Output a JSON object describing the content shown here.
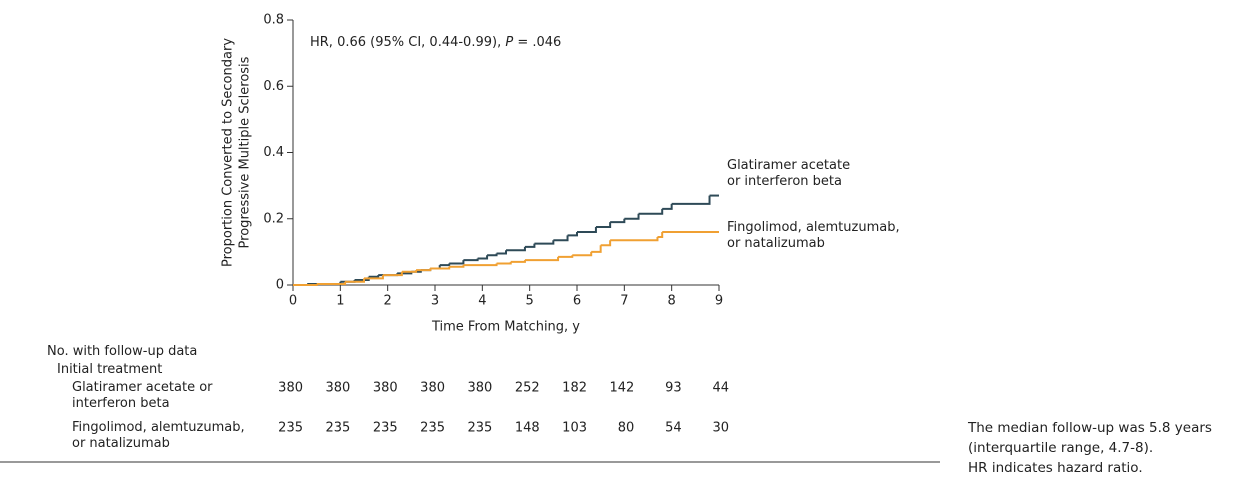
{
  "chart_data": {
    "type": "step",
    "annotation": [
      "HR, 0.66 (95% CI, 0.44-0.99), ",
      "P",
      " = .046"
    ],
    "ylabel": [
      "Proportion Converted to Secondary",
      "Progressive Multiple Sclerosis"
    ],
    "xlabel": "Time From Matching, y",
    "xlim": [
      0,
      9
    ],
    "xticks": [
      0,
      1,
      2,
      3,
      4,
      5,
      6,
      7,
      8,
      9
    ],
    "ylim": [
      0,
      0.8
    ],
    "yticks": [
      0,
      0.2,
      0.4,
      0.6,
      0.8
    ],
    "series": [
      {
        "name": "Glatiramer acetate\nor interferon beta",
        "color": "#2e4a57",
        "x": [
          0,
          0.3,
          1,
          1.3,
          1.6,
          1.8,
          2.2,
          2.5,
          2.7,
          2.9,
          3.1,
          3.3,
          3.6,
          3.9,
          4.1,
          4.3,
          4.5,
          4.9,
          5.1,
          5.5,
          5.8,
          6.0,
          6.4,
          6.7,
          7.0,
          7.3,
          7.8,
          8.0,
          8.8,
          9
        ],
        "values": [
          0,
          0.003,
          0.01,
          0.015,
          0.025,
          0.03,
          0.035,
          0.04,
          0.045,
          0.05,
          0.06,
          0.065,
          0.075,
          0.08,
          0.09,
          0.095,
          0.105,
          0.115,
          0.125,
          0.135,
          0.15,
          0.16,
          0.175,
          0.19,
          0.2,
          0.215,
          0.23,
          0.245,
          0.27,
          0.27
        ]
      },
      {
        "name": "Fingolimod, alemtuzumab,\nor natalizumab",
        "color": "#f0a032",
        "x": [
          0,
          0.5,
          1.1,
          1.5,
          1.9,
          2.3,
          2.6,
          2.9,
          3.3,
          3.6,
          4.3,
          4.6,
          4.9,
          5.6,
          5.9,
          6.3,
          6.5,
          6.7,
          7.7,
          7.8,
          9
        ],
        "values": [
          0,
          0.003,
          0.01,
          0.02,
          0.03,
          0.04,
          0.045,
          0.05,
          0.055,
          0.06,
          0.065,
          0.07,
          0.075,
          0.085,
          0.09,
          0.1,
          0.12,
          0.135,
          0.145,
          0.16,
          0.16
        ]
      }
    ]
  },
  "risk_table": {
    "header": [
      "No. with follow-up data",
      "Initial treatment"
    ],
    "rows": [
      {
        "label": "Glatiramer acetate or\ninterferon beta",
        "counts": [
          380,
          380,
          380,
          380,
          380,
          252,
          182,
          142,
          93,
          44
        ]
      },
      {
        "label": "Fingolimod, alemtuzumab,\nor natalizumab",
        "counts": [
          235,
          235,
          235,
          235,
          235,
          148,
          103,
          80,
          54,
          30
        ]
      }
    ]
  },
  "footnote": [
    "The median follow-up was 5.8 years (interquartile range, 4.7-8).",
    "HR indicates hazard ratio."
  ]
}
